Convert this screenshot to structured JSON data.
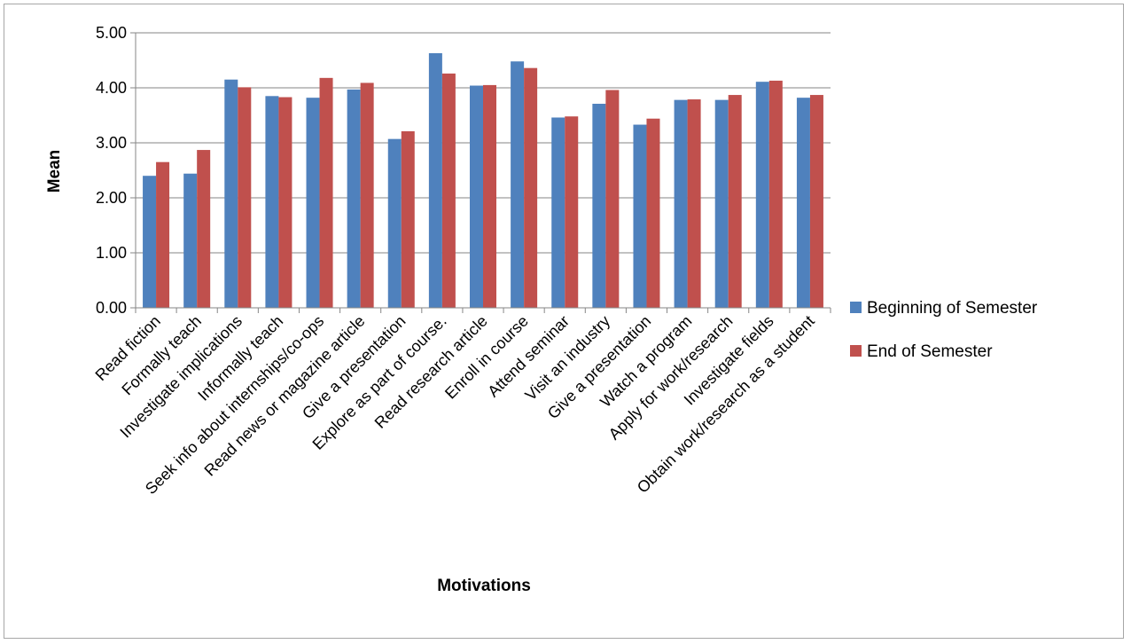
{
  "chart_data": {
    "type": "bar",
    "title": "",
    "xlabel": "Motivations",
    "ylabel": "Mean",
    "ylim": [
      0,
      5
    ],
    "yticks": [
      "0.00",
      "1.00",
      "2.00",
      "3.00",
      "4.00",
      "5.00"
    ],
    "grid": true,
    "legend_position": "right",
    "categories": [
      "Read fiction",
      "Formally teach",
      "Investigate implications",
      "Informally teach",
      "Seek info about internships/co-ops",
      "Read news or magazine article",
      "Give a presentation",
      "Explore as part of course.",
      "Read research article",
      "Enroll in course",
      "Attend seminar",
      "Visit an industry",
      "Give a presentation",
      "Watch a program",
      "Apply for work/research",
      "Investigate fields",
      "Obtain work/research as a student"
    ],
    "series": [
      {
        "name": "Beginning of Semester",
        "color": "#4f81bd",
        "values": [
          2.4,
          2.44,
          4.15,
          3.85,
          3.82,
          3.97,
          3.07,
          4.63,
          4.04,
          4.48,
          3.46,
          3.71,
          3.33,
          3.78,
          3.78,
          4.11,
          3.82
        ]
      },
      {
        "name": "End of Semester",
        "color": "#c0504d",
        "values": [
          2.65,
          2.87,
          4.01,
          3.83,
          4.18,
          4.09,
          3.21,
          4.26,
          4.05,
          4.36,
          3.48,
          3.96,
          3.44,
          3.79,
          3.87,
          4.13,
          3.87
        ]
      }
    ]
  }
}
